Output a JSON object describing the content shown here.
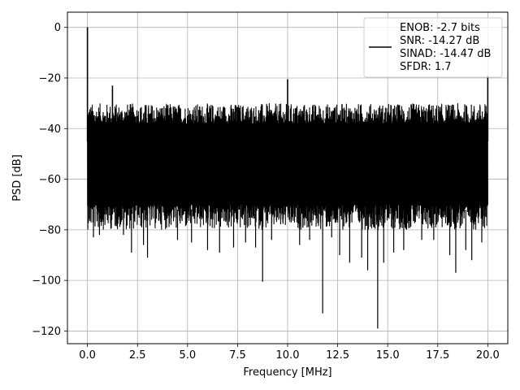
{
  "chart_data": {
    "type": "line",
    "title": "",
    "xlabel": "Frequency [MHz]",
    "ylabel": "PSD [dB]",
    "xlim": [
      -1.0,
      21.0
    ],
    "ylim": [
      -125,
      6
    ],
    "xticks": [
      0.0,
      2.5,
      5.0,
      7.5,
      10.0,
      12.5,
      15.0,
      17.5,
      20.0
    ],
    "xtick_labels": [
      "0.0",
      "2.5",
      "5.0",
      "7.5",
      "10.0",
      "12.5",
      "15.0",
      "17.5",
      "20.0"
    ],
    "yticks": [
      0,
      -20,
      -40,
      -60,
      -80,
      -100,
      -120
    ],
    "ytick_labels": [
      "0",
      "−20",
      "−40",
      "−60",
      "−80",
      "−100",
      "−120"
    ],
    "grid": true,
    "legend_placement": "top-right",
    "series_color": "#000000",
    "legend_lines": [
      "ENOB: -2.7 bits",
      "SNR: -14.27 dB",
      "SINAD: -14.47 dB",
      "SFDR: 1.7"
    ],
    "noise_band": {
      "x_start": 0.0,
      "x_end": 20.0,
      "upper_range_db": [
        -38,
        -30
      ],
      "lower_range_db": [
        -80,
        -70
      ]
    },
    "peaks": [
      {
        "x": 0.0,
        "y": 0
      },
      {
        "x": 1.25,
        "y": -23
      },
      {
        "x": 10.0,
        "y": -20.5
      },
      {
        "x": 20.0,
        "y": -19
      }
    ],
    "dips": [
      {
        "x": 0.3,
        "y": -83
      },
      {
        "x": 0.6,
        "y": -82
      },
      {
        "x": 1.8,
        "y": -82
      },
      {
        "x": 2.2,
        "y": -89
      },
      {
        "x": 2.8,
        "y": -86
      },
      {
        "x": 3.0,
        "y": -91
      },
      {
        "x": 4.5,
        "y": -84
      },
      {
        "x": 5.2,
        "y": -85
      },
      {
        "x": 6.0,
        "y": -88
      },
      {
        "x": 6.6,
        "y": -89
      },
      {
        "x": 7.3,
        "y": -87
      },
      {
        "x": 7.9,
        "y": -85
      },
      {
        "x": 8.4,
        "y": -87
      },
      {
        "x": 8.75,
        "y": -100.5
      },
      {
        "x": 9.2,
        "y": -84
      },
      {
        "x": 10.6,
        "y": -86
      },
      {
        "x": 11.1,
        "y": -84
      },
      {
        "x": 11.75,
        "y": -113
      },
      {
        "x": 12.2,
        "y": -83
      },
      {
        "x": 12.6,
        "y": -90
      },
      {
        "x": 13.1,
        "y": -93
      },
      {
        "x": 13.7,
        "y": -91
      },
      {
        "x": 14.0,
        "y": -96
      },
      {
        "x": 14.5,
        "y": -119
      },
      {
        "x": 14.8,
        "y": -93
      },
      {
        "x": 15.3,
        "y": -89
      },
      {
        "x": 15.8,
        "y": -88
      },
      {
        "x": 16.7,
        "y": -84
      },
      {
        "x": 17.3,
        "y": -84
      },
      {
        "x": 18.1,
        "y": -90
      },
      {
        "x": 18.4,
        "y": -97
      },
      {
        "x": 18.9,
        "y": -88
      },
      {
        "x": 19.2,
        "y": -92
      },
      {
        "x": 19.7,
        "y": -85
      }
    ]
  }
}
